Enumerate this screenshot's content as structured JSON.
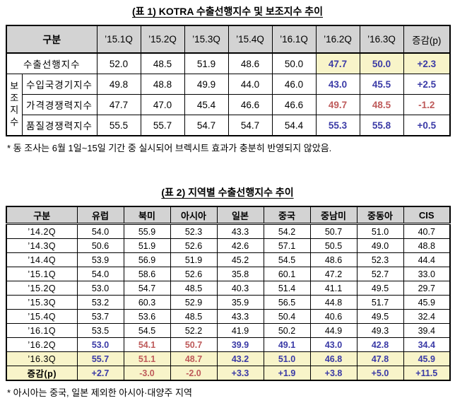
{
  "colors": {
    "increase_blue": "#3A3AA6",
    "decrease_red": "#BE5A5A",
    "highlight_yellow": "#F8F4C9",
    "header_gray": "#D3D3D3",
    "border_black": "#000000"
  },
  "table1": {
    "title": "(표 1) KOTRA 수출선행지수 및 보조지수 추이",
    "corner_header": "구분",
    "col_headers": [
      "’15.1Q",
      "’15.2Q",
      "’15.3Q",
      "’15.4Q",
      "’16.1Q",
      "’16.2Q",
      "’16.3Q",
      "증감(p)"
    ],
    "group_label": "보조지수",
    "rows": [
      {
        "label": "수출선행지수",
        "values": [
          "52.0",
          "48.5",
          "51.9",
          "48.6",
          "50.0",
          "47.7",
          "50.0",
          "+2.3"
        ],
        "styles": [
          "",
          "",
          "",
          "",
          "",
          "up hl",
          "up hl",
          "up hl"
        ]
      },
      {
        "label": "수입국경기지수",
        "values": [
          "49.8",
          "48.8",
          "49.9",
          "44.0",
          "46.0",
          "43.0",
          "45.5",
          "+2.5"
        ],
        "styles": [
          "",
          "",
          "",
          "",
          "",
          "up",
          "up",
          "up"
        ]
      },
      {
        "label": "가격경쟁력지수",
        "values": [
          "47.7",
          "47.0",
          "45.4",
          "46.6",
          "46.6",
          "49.7",
          "48.5",
          "-1.2"
        ],
        "styles": [
          "",
          "",
          "",
          "",
          "",
          "down",
          "down",
          "down"
        ]
      },
      {
        "label": "품질경쟁력지수",
        "values": [
          "55.5",
          "55.7",
          "54.7",
          "54.7",
          "54.4",
          "55.3",
          "55.8",
          "+0.5"
        ],
        "styles": [
          "",
          "",
          "",
          "",
          "",
          "up",
          "up",
          "up"
        ]
      }
    ],
    "footnote": "* 동 조사는 6월 1일~15일 기간 중 실시되어 브렉시트 효과가 충분히 반영되지 않았음."
  },
  "table2": {
    "title": "(표 2) 지역별 수출선행지수 추이",
    "corner_header": "구분",
    "col_headers": [
      "유럽",
      "북미",
      "아시아",
      "일본",
      "중국",
      "중남미",
      "중동아",
      "CIS"
    ],
    "rows": [
      {
        "label": "’14.2Q",
        "row_class": "",
        "label_class": "",
        "values": [
          "54.0",
          "55.9",
          "52.3",
          "43.3",
          "54.2",
          "50.7",
          "51.0",
          "40.7"
        ],
        "styles": [
          "",
          "",
          "",
          "",
          "",
          "",
          "",
          ""
        ]
      },
      {
        "label": "’14.3Q",
        "row_class": "",
        "label_class": "",
        "values": [
          "50.6",
          "51.9",
          "52.6",
          "42.6",
          "57.1",
          "50.5",
          "49.0",
          "48.8"
        ],
        "styles": [
          "",
          "",
          "",
          "",
          "",
          "",
          "",
          ""
        ]
      },
      {
        "label": "’14.4Q",
        "row_class": "",
        "label_class": "",
        "values": [
          "53.9",
          "56.9",
          "51.9",
          "45.2",
          "54.5",
          "48.6",
          "52.3",
          "44.4"
        ],
        "styles": [
          "",
          "",
          "",
          "",
          "",
          "",
          "",
          ""
        ]
      },
      {
        "label": "’15.1Q",
        "row_class": "",
        "label_class": "",
        "values": [
          "54.0",
          "58.6",
          "52.6",
          "35.8",
          "60.1",
          "47.2",
          "52.7",
          "33.0"
        ],
        "styles": [
          "",
          "",
          "",
          "",
          "",
          "",
          "",
          ""
        ]
      },
      {
        "label": "’15.2Q",
        "row_class": "",
        "label_class": "",
        "values": [
          "53.0",
          "54.7",
          "48.5",
          "40.3",
          "51.4",
          "41.1",
          "49.5",
          "29.7"
        ],
        "styles": [
          "",
          "",
          "",
          "",
          "",
          "",
          "",
          ""
        ]
      },
      {
        "label": "’15.3Q",
        "row_class": "",
        "label_class": "",
        "values": [
          "53.2",
          "60.3",
          "52.9",
          "35.9",
          "56.5",
          "44.8",
          "51.7",
          "45.9"
        ],
        "styles": [
          "",
          "",
          "",
          "",
          "",
          "",
          "",
          ""
        ]
      },
      {
        "label": "’15.4Q",
        "row_class": "",
        "label_class": "",
        "values": [
          "53.7",
          "53.6",
          "48.5",
          "43.3",
          "50.4",
          "40.6",
          "49.5",
          "32.4"
        ],
        "styles": [
          "",
          "",
          "",
          "",
          "",
          "",
          "",
          ""
        ]
      },
      {
        "label": "’16.1Q",
        "row_class": "",
        "label_class": "",
        "values": [
          "53.5",
          "54.5",
          "52.2",
          "41.9",
          "50.2",
          "44.9",
          "49.3",
          "39.4"
        ],
        "styles": [
          "",
          "",
          "",
          "",
          "",
          "",
          "",
          ""
        ]
      },
      {
        "label": "’16.2Q",
        "row_class": "",
        "label_class": "",
        "values": [
          "53.0",
          "54.1",
          "50.7",
          "39.9",
          "49.1",
          "43.0",
          "42.8",
          "34.4"
        ],
        "styles": [
          "up",
          "down",
          "down",
          "up",
          "up",
          "up",
          "up",
          "up"
        ]
      },
      {
        "label": "’16.3Q",
        "row_class": "hl",
        "label_class": "",
        "values": [
          "55.7",
          "51.1",
          "48.7",
          "43.2",
          "51.0",
          "46.8",
          "47.8",
          "45.9"
        ],
        "styles": [
          "up",
          "down",
          "down",
          "up",
          "up",
          "up",
          "up",
          "up"
        ]
      },
      {
        "label": "증감(p)",
        "row_class": "hl",
        "label_class": "bold",
        "values": [
          "+2.7",
          "-3.0",
          "-2.0",
          "+3.3",
          "+1.9",
          "+3.8",
          "+5.0",
          "+11.5"
        ],
        "styles": [
          "up",
          "down",
          "down",
          "up",
          "up",
          "up",
          "up",
          "up"
        ]
      }
    ],
    "footnote": "* 아시아는 중국, 일본 제외한 아시아·대양주 지역"
  }
}
